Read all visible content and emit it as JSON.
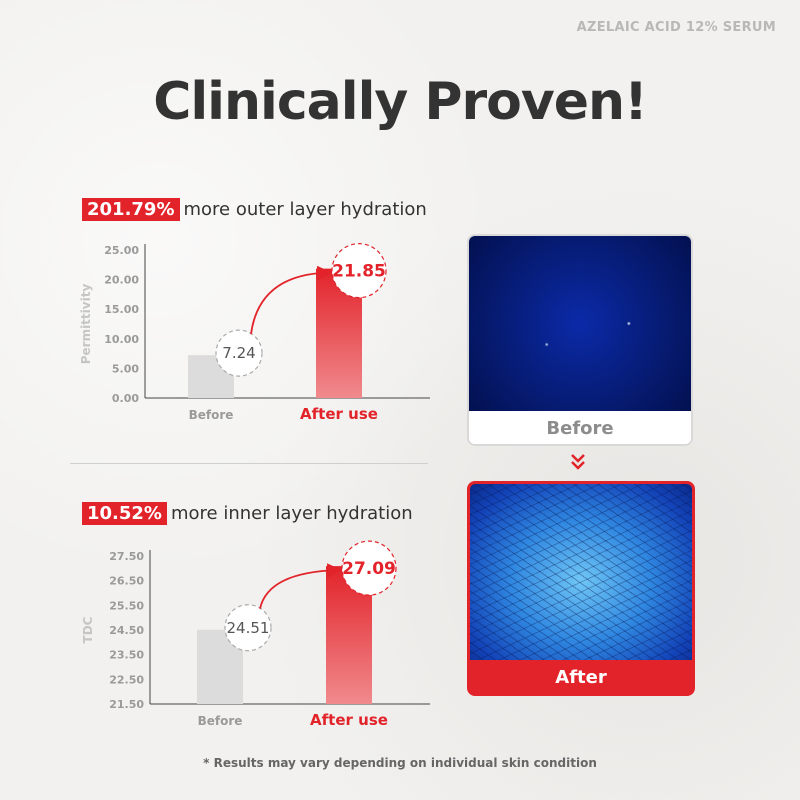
{
  "brand": "AZELAIC ACID 12% SERUM",
  "title": "Clinically Proven!",
  "claims": [
    {
      "highlight": "201.79%",
      "text": "more outer layer hydration"
    },
    {
      "highlight": "10.52%",
      "text": "more inner layer hydration"
    }
  ],
  "image_captions": {
    "before": "Before",
    "after": "After"
  },
  "footnote": "* Results may vary depending on individual skin condition",
  "colors": {
    "accent": "#e2232a",
    "before_bar": "#dcdcdc"
  },
  "chart_data": [
    {
      "type": "bar",
      "categories": [
        "Before",
        "After use"
      ],
      "values": [
        7.24,
        21.85
      ],
      "value_labels": [
        "7.24",
        "21.85"
      ],
      "ylabel": "Permittivity",
      "yticks": [
        "0.00",
        "5.00",
        "10.00",
        "15.00",
        "20.00",
        "25.00"
      ],
      "ylim": [
        0,
        25
      ]
    },
    {
      "type": "bar",
      "categories": [
        "Before",
        "After use"
      ],
      "values": [
        24.51,
        27.09
      ],
      "value_labels": [
        "24.51",
        "27.09"
      ],
      "ylabel": "TDC",
      "yticks": [
        "21.50",
        "22.50",
        "23.50",
        "24.50",
        "25.50",
        "26.50",
        "27.50"
      ],
      "ylim": [
        21.5,
        27.5
      ]
    }
  ]
}
